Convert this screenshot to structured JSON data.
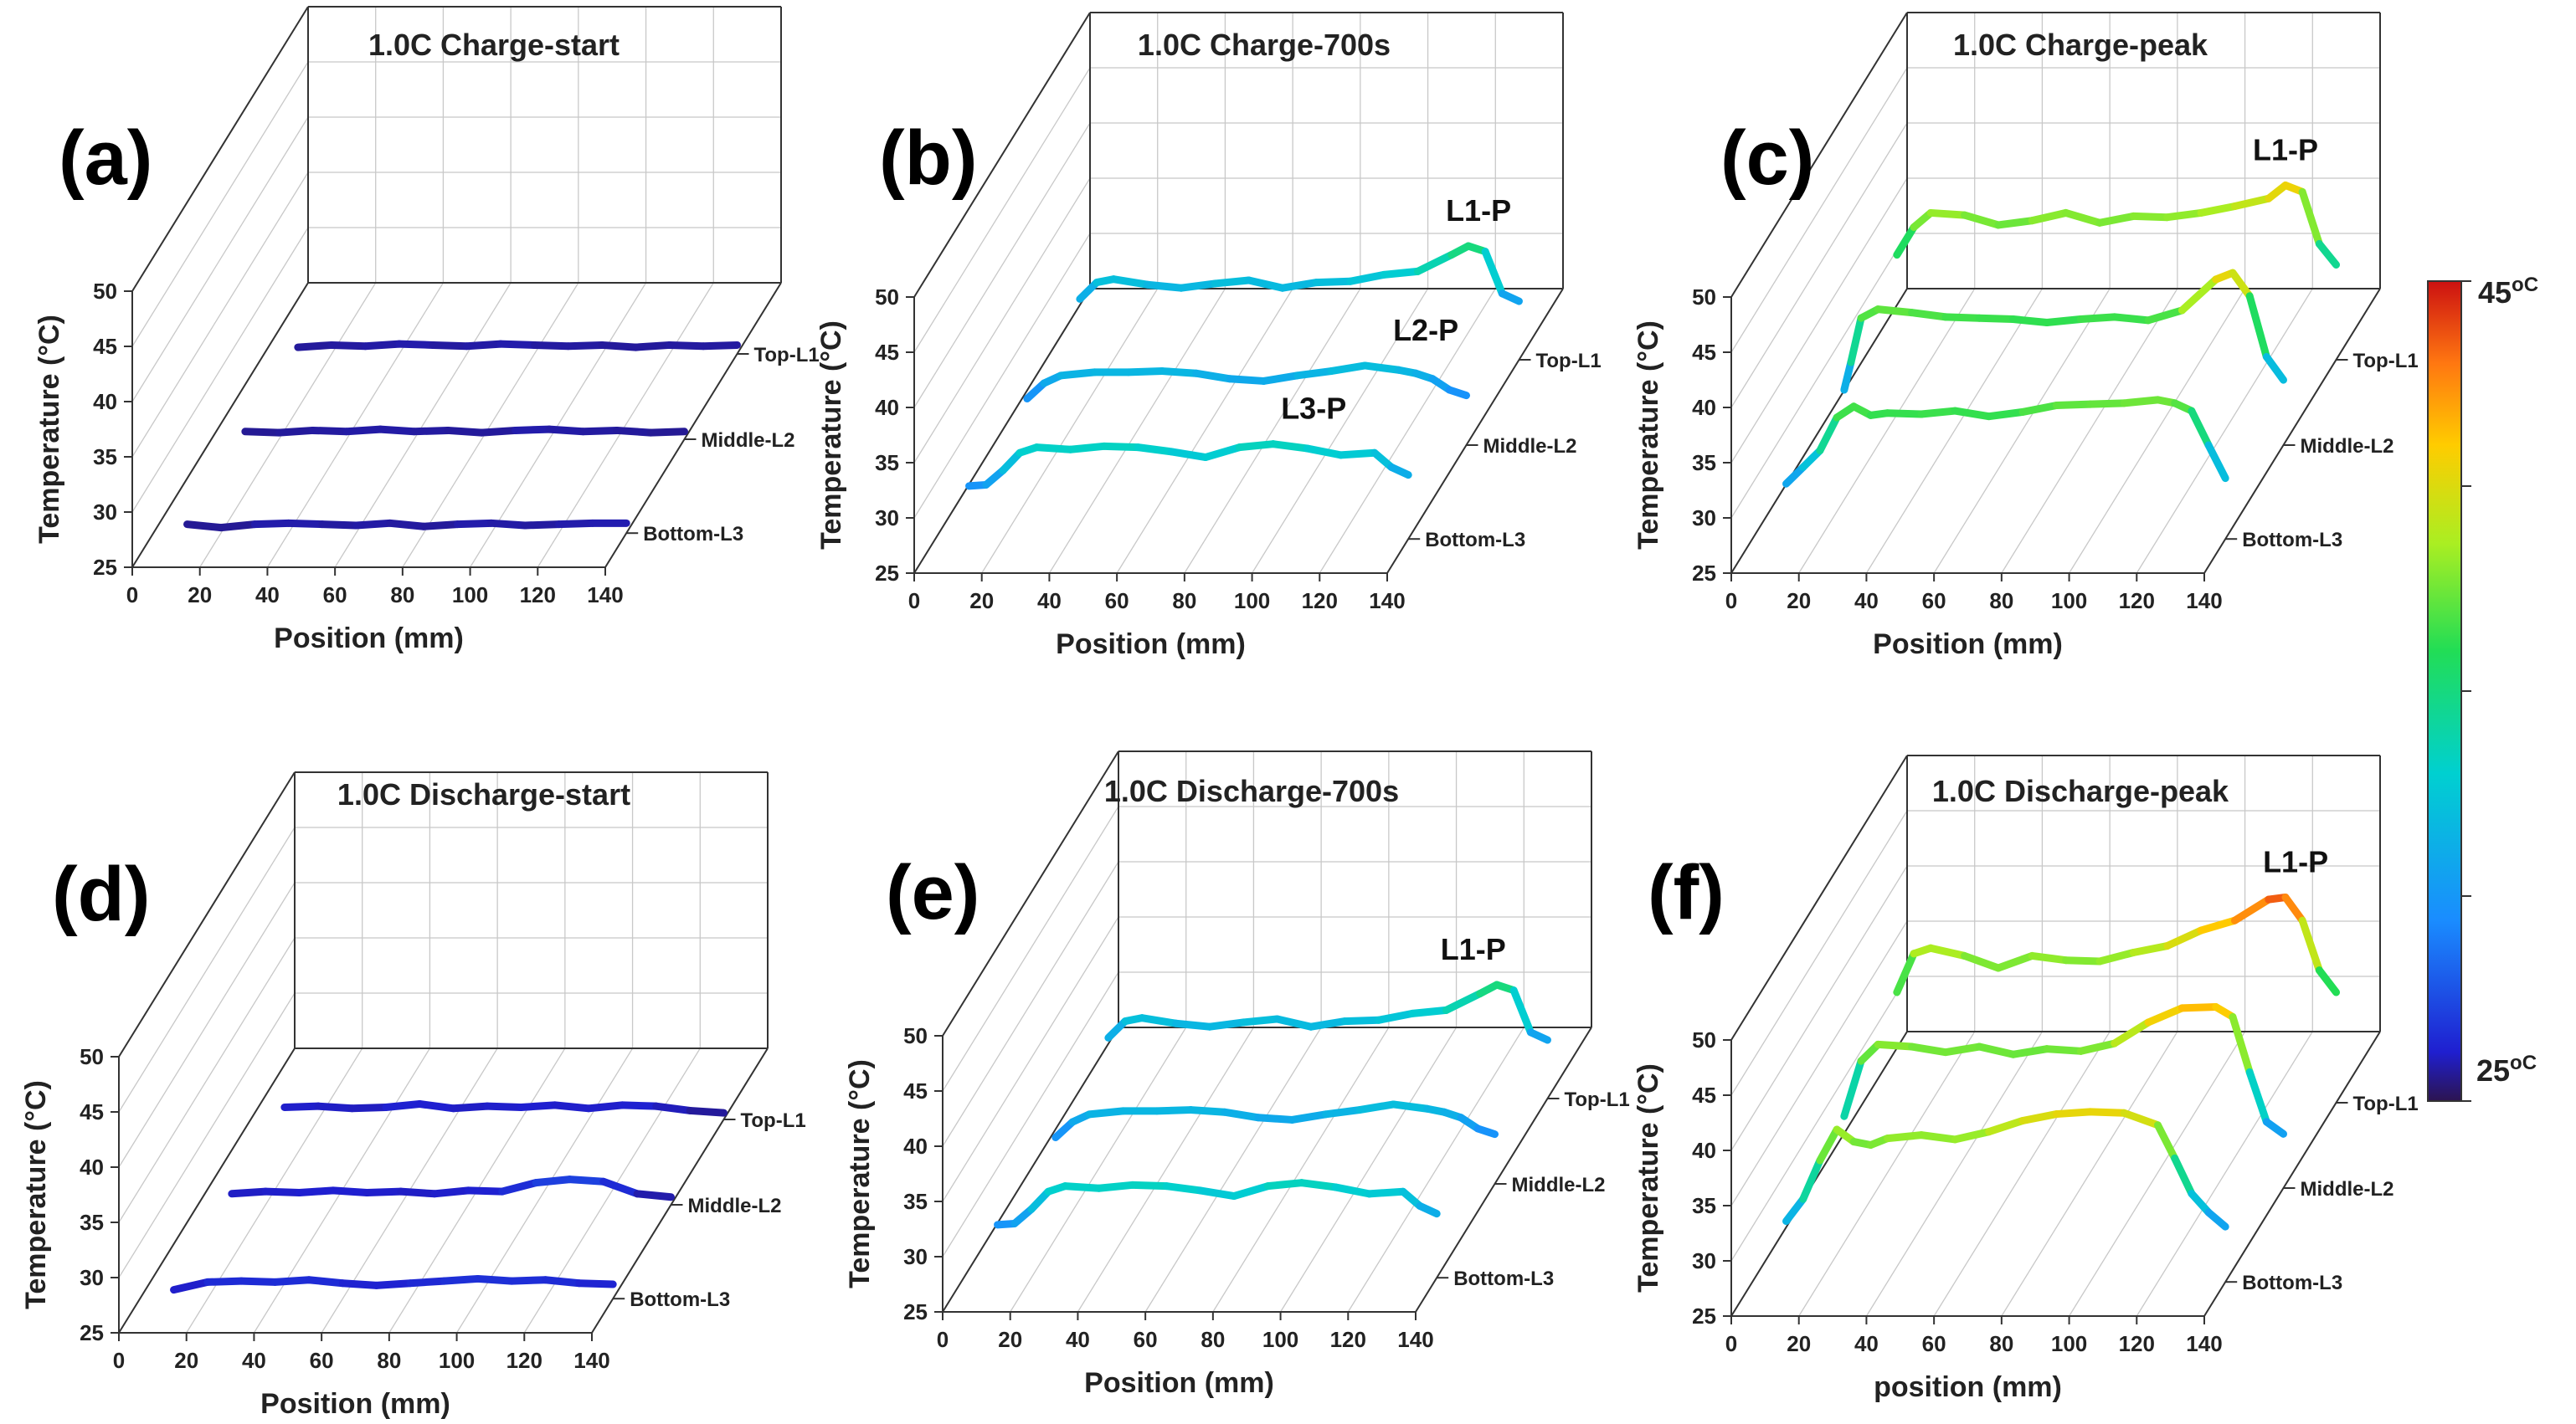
{
  "colorbar": {
    "max_label": "45",
    "max_unit": "oC",
    "min_label": "25",
    "min_unit": "oC",
    "range": [
      25,
      45
    ]
  },
  "chart_data": [
    {
      "type": "line3d",
      "panel": "(a)",
      "title": "1.0C Charge-start",
      "xlabel": "Position (mm)",
      "ylabel": "Temperature (°C)",
      "xlim": [
        0,
        140
      ],
      "ylim": [
        25,
        50
      ],
      "xticks": [
        "0",
        "20",
        "40",
        "60",
        "80",
        "100",
        "120",
        "140"
      ],
      "yticks": [
        "25",
        "30",
        "35",
        "40",
        "45",
        "50"
      ],
      "layers": [
        "Top-L1",
        "Middle-L2",
        "Bottom-L3"
      ],
      "annotations": [],
      "series": [
        {
          "name": "Top-L1",
          "x": [
            10,
            20,
            30,
            40,
            50,
            60,
            70,
            80,
            90,
            100,
            110,
            120,
            130,
            140
          ],
          "y": [
            25.6,
            25.8,
            25.7,
            25.9,
            25.8,
            25.7,
            25.9,
            25.8,
            25.7,
            25.8,
            25.6,
            25.8,
            25.7,
            25.8
          ]
        },
        {
          "name": "Middle-L2",
          "x": [
            10,
            20,
            30,
            40,
            50,
            60,
            70,
            80,
            90,
            100,
            110,
            120,
            130,
            140
          ],
          "y": [
            25.7,
            25.6,
            25.8,
            25.7,
            25.9,
            25.7,
            25.8,
            25.6,
            25.8,
            25.9,
            25.7,
            25.8,
            25.6,
            25.7
          ]
        },
        {
          "name": "Bottom-L3",
          "x": [
            10,
            20,
            30,
            40,
            50,
            60,
            70,
            80,
            90,
            100,
            110,
            120,
            130,
            140
          ],
          "y": [
            25.8,
            25.5,
            25.8,
            25.9,
            25.8,
            25.7,
            25.9,
            25.6,
            25.8,
            25.9,
            25.7,
            25.8,
            25.9,
            25.9
          ]
        }
      ]
    },
    {
      "type": "line3d",
      "panel": "(b)",
      "title": "1.0C Charge-700s",
      "xlabel": "Position (mm)",
      "ylabel": "Temperature (°C)",
      "xlim": [
        0,
        140
      ],
      "ylim": [
        25,
        50
      ],
      "xticks": [
        "0",
        "20",
        "40",
        "60",
        "80",
        "100",
        "120",
        "140"
      ],
      "yticks": [
        "25",
        "30",
        "35",
        "40",
        "45",
        "50"
      ],
      "layers": [
        "Top-L1",
        "Middle-L2",
        "Bottom-L3"
      ],
      "annotations": [
        {
          "series": "Top-L1",
          "text": "L1-P",
          "x": 128
        },
        {
          "series": "Middle-L2",
          "text": "L2-P",
          "x": 128
        },
        {
          "series": "Bottom-L3",
          "text": "L3-P",
          "x": 112
        }
      ],
      "series": [
        {
          "name": "Top-L1",
          "x": [
            10,
            15,
            20,
            30,
            40,
            50,
            60,
            70,
            80,
            90,
            100,
            110,
            120,
            125,
            130,
            135,
            140
          ],
          "y": [
            30.5,
            32,
            32.3,
            31.8,
            31.5,
            31.9,
            32.2,
            31.5,
            32,
            32.1,
            32.7,
            33,
            34.5,
            35.3,
            34.8,
            31,
            30.3
          ]
        },
        {
          "name": "Middle-L2",
          "x": [
            10,
            15,
            20,
            30,
            40,
            50,
            60,
            70,
            80,
            90,
            100,
            110,
            120,
            125,
            130,
            135,
            140
          ],
          "y": [
            29.2,
            30.6,
            31.3,
            31.6,
            31.6,
            31.7,
            31.5,
            31,
            30.8,
            31.3,
            31.7,
            32.2,
            31.8,
            31.5,
            31,
            30,
            29.5
          ]
        },
        {
          "name": "Bottom-L3",
          "x": [
            10,
            15,
            20,
            25,
            30,
            40,
            50,
            60,
            70,
            80,
            90,
            100,
            110,
            120,
            130,
            135,
            140
          ],
          "y": [
            29.8,
            29.9,
            31.2,
            32.8,
            33.3,
            33.1,
            33.4,
            33.3,
            32.9,
            32.4,
            33.3,
            33.6,
            33.2,
            32.6,
            32.8,
            31.5,
            30.8
          ]
        }
      ]
    },
    {
      "type": "line3d",
      "panel": "(c)",
      "title": "1.0C Charge-peak",
      "xlabel": "Position (mm)",
      "ylabel": "Temperature (°C)",
      "xlim": [
        0,
        140
      ],
      "ylim": [
        25,
        50
      ],
      "xticks": [
        "0",
        "20",
        "40",
        "60",
        "80",
        "100",
        "120",
        "140"
      ],
      "yticks": [
        "25",
        "30",
        "35",
        "40",
        "45",
        "50"
      ],
      "layers": [
        "Top-L1",
        "Middle-L2",
        "Bottom-L3"
      ],
      "annotations": [
        {
          "series": "Top-L1",
          "text": "L1-P",
          "x": 125
        }
      ],
      "series": [
        {
          "name": "Top-L1",
          "x": [
            10,
            15,
            20,
            30,
            40,
            50,
            60,
            70,
            80,
            90,
            100,
            110,
            120,
            125,
            130,
            135,
            140
          ],
          "y": [
            34.5,
            37,
            38.3,
            38.1,
            37.2,
            37.6,
            38.3,
            37.4,
            38,
            37.9,
            38.3,
            38.9,
            39.6,
            40.8,
            40.2,
            35.5,
            33.6
          ]
        },
        {
          "name": "Middle-L2",
          "x": [
            10,
            12,
            15,
            20,
            30,
            40,
            50,
            60,
            70,
            80,
            90,
            100,
            110,
            120,
            125,
            130,
            135,
            140
          ],
          "y": [
            30,
            32.5,
            36.5,
            37.3,
            37,
            36.6,
            36.5,
            36.4,
            36.1,
            36.4,
            36.6,
            36.3,
            37.2,
            40,
            40.6,
            38.5,
            33,
            30.9
          ]
        },
        {
          "name": "Bottom-L3",
          "x": [
            10,
            15,
            20,
            25,
            30,
            35,
            40,
            50,
            60,
            70,
            80,
            90,
            100,
            110,
            120,
            125,
            130,
            135,
            140
          ],
          "y": [
            30,
            31.5,
            33,
            36,
            37,
            36.2,
            36.4,
            36.3,
            36.6,
            36.1,
            36.5,
            37.1,
            37.2,
            37.3,
            37.6,
            37.3,
            36.6,
            33.5,
            30.5
          ]
        }
      ]
    },
    {
      "type": "line3d",
      "panel": "(d)",
      "title": "1.0C Discharge-start",
      "xlabel": "Position (mm)",
      "ylabel": "Temperature (°C)",
      "xlim": [
        0,
        140
      ],
      "ylim": [
        25,
        50
      ],
      "xticks": [
        "0",
        "20",
        "40",
        "60",
        "80",
        "100",
        "120",
        "140"
      ],
      "yticks": [
        "25",
        "30",
        "35",
        "40",
        "45",
        "50"
      ],
      "layers": [
        "Top-L1",
        "Middle-L2",
        "Bottom-L3"
      ],
      "annotations": [],
      "series": [
        {
          "name": "Top-L1",
          "x": [
            10,
            20,
            30,
            40,
            50,
            60,
            70,
            80,
            90,
            100,
            110,
            120,
            130,
            140
          ],
          "y": [
            26.1,
            26.2,
            26,
            26.1,
            26.4,
            26,
            26.2,
            26.1,
            26.3,
            26,
            26.3,
            26.2,
            25.8,
            25.6
          ]
        },
        {
          "name": "Middle-L2",
          "x": [
            10,
            20,
            30,
            40,
            50,
            60,
            70,
            80,
            90,
            100,
            110,
            120,
            130,
            140
          ],
          "y": [
            26,
            26.2,
            26.1,
            26.3,
            26.1,
            26.2,
            26,
            26.3,
            26.2,
            27,
            27.3,
            27.1,
            26,
            25.7
          ]
        },
        {
          "name": "Bottom-L3",
          "x": [
            10,
            20,
            30,
            40,
            50,
            60,
            70,
            80,
            90,
            100,
            110,
            120,
            130,
            140
          ],
          "y": [
            25.8,
            26.5,
            26.6,
            26.5,
            26.7,
            26.4,
            26.2,
            26.4,
            26.6,
            26.8,
            26.6,
            26.7,
            26.4,
            26.3
          ]
        }
      ]
    },
    {
      "type": "line3d",
      "panel": "(e)",
      "title": "1.0C Discharge-700s",
      "xlabel": "Position (mm)",
      "ylabel": "Temperature (°C)",
      "xlim": [
        0,
        140
      ],
      "ylim": [
        25,
        50
      ],
      "xticks": [
        "0",
        "20",
        "40",
        "60",
        "80",
        "100",
        "120",
        "140"
      ],
      "yticks": [
        "25",
        "30",
        "35",
        "40",
        "45",
        "50"
      ],
      "layers": [
        "Top-L1",
        "Middle-L2",
        "Bottom-L3"
      ],
      "annotations": [
        {
          "series": "Top-L1",
          "text": "L1-P",
          "x": 118
        }
      ],
      "series": [
        {
          "name": "Top-L1",
          "x": [
            10,
            15,
            20,
            30,
            40,
            50,
            60,
            70,
            80,
            90,
            100,
            110,
            120,
            125,
            130,
            135,
            140
          ],
          "y": [
            30.5,
            32,
            32.3,
            31.8,
            31.5,
            31.9,
            32.2,
            31.5,
            32,
            32.1,
            32.7,
            33,
            34.5,
            35.3,
            34.8,
            31,
            30.3
          ]
        },
        {
          "name": "Middle-L2",
          "x": [
            10,
            15,
            20,
            30,
            40,
            50,
            60,
            70,
            80,
            90,
            100,
            110,
            120,
            125,
            130,
            135,
            140
          ],
          "y": [
            29.2,
            30.6,
            31.3,
            31.6,
            31.6,
            31.7,
            31.5,
            31,
            30.8,
            31.3,
            31.7,
            32.2,
            31.8,
            31.5,
            31,
            30,
            29.5
          ]
        },
        {
          "name": "Bottom-L3",
          "x": [
            10,
            15,
            20,
            25,
            30,
            40,
            50,
            60,
            70,
            80,
            90,
            100,
            110,
            120,
            130,
            135,
            140
          ],
          "y": [
            29.8,
            29.9,
            31.2,
            32.8,
            33.3,
            33.1,
            33.4,
            33.3,
            32.9,
            32.4,
            33.3,
            33.6,
            33.2,
            32.6,
            32.8,
            31.5,
            30.8
          ]
        }
      ]
    },
    {
      "type": "line3d",
      "panel": "(f)",
      "title": "1.0C Discharge-peak",
      "xlabel": "position (mm)",
      "ylabel": "Temperature (°C)",
      "xlim": [
        0,
        140
      ],
      "ylim": [
        25,
        50
      ],
      "xticks": [
        "0",
        "20",
        "40",
        "60",
        "80",
        "100",
        "120",
        "140"
      ],
      "yticks": [
        "25",
        "30",
        "35",
        "40",
        "45",
        "50"
      ],
      "layers": [
        "Top-L1",
        "Middle-L2",
        "Bottom-L3"
      ],
      "annotations": [
        {
          "series": "Top-L1",
          "text": "L1-P",
          "x": 128
        }
      ],
      "series": [
        {
          "name": "Top-L1",
          "x": [
            10,
            15,
            20,
            30,
            40,
            50,
            60,
            70,
            80,
            90,
            100,
            110,
            120,
            125,
            130,
            135,
            140
          ],
          "y": [
            35,
            38.5,
            39,
            38.3,
            37.2,
            38.3,
            37.9,
            37.8,
            38.6,
            39.2,
            40.6,
            41.5,
            43.4,
            43.6,
            41.5,
            37,
            35
          ]
        },
        {
          "name": "Middle-L2",
          "x": [
            10,
            15,
            20,
            30,
            40,
            50,
            60,
            70,
            80,
            90,
            100,
            110,
            120,
            125,
            130,
            135,
            140
          ],
          "y": [
            31.5,
            36.5,
            38,
            37.8,
            37.3,
            37.8,
            37.1,
            37.6,
            37.4,
            38.1,
            40,
            41.3,
            41.4,
            40.5,
            35.5,
            31,
            29.9
          ]
        },
        {
          "name": "Bottom-L3",
          "x": [
            10,
            15,
            20,
            25,
            30,
            35,
            40,
            50,
            60,
            70,
            80,
            90,
            100,
            110,
            120,
            125,
            130,
            135,
            140
          ],
          "y": [
            30.5,
            32.5,
            36,
            38.8,
            37.7,
            37.4,
            38,
            38.3,
            37.9,
            38.6,
            39.6,
            40.2,
            40.4,
            40.3,
            39.2,
            36.2,
            33,
            31.3,
            30
          ]
        }
      ]
    }
  ]
}
